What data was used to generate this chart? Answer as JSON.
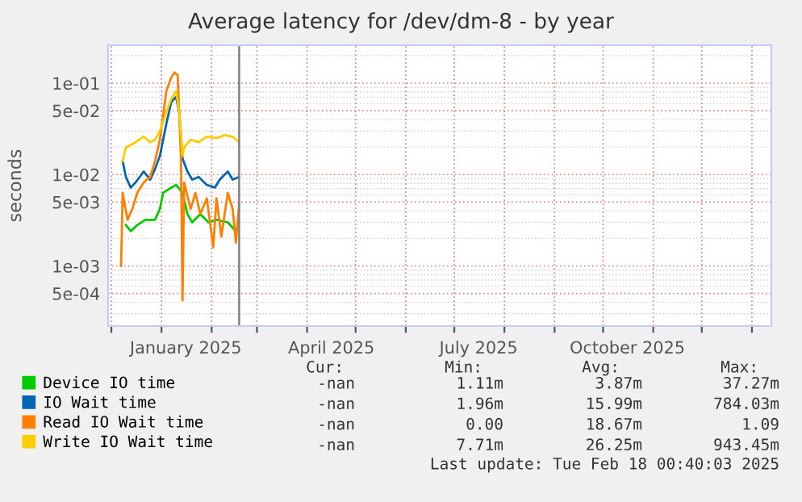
{
  "chart_data": {
    "type": "line",
    "title": "Average latency for /dev/dm-8 - by year",
    "ylabel": "seconds",
    "log": "y",
    "grid": true,
    "legend": "bottom left",
    "marker": "none",
    "line_style": "solid",
    "xlim": [
      "2024-11-29",
      "2026-01-13"
    ],
    "xticks": [
      {
        "value": "2024-12-01",
        "label": null
      },
      {
        "value": "2025-01-01",
        "label": null
      },
      {
        "value": "2025-01-16",
        "label": "January 2025"
      },
      {
        "value": "2025-02-01",
        "label": null
      },
      {
        "value": "2025-03-01",
        "label": null
      },
      {
        "value": "2025-04-01",
        "label": null
      },
      {
        "value": "2025-04-16",
        "label": "April 2025"
      },
      {
        "value": "2025-05-01",
        "label": null
      },
      {
        "value": "2025-06-01",
        "label": null
      },
      {
        "value": "2025-07-01",
        "label": null
      },
      {
        "value": "2025-07-16",
        "label": "July 2025"
      },
      {
        "value": "2025-08-01",
        "label": null
      },
      {
        "value": "2025-09-01",
        "label": null
      },
      {
        "value": "2025-10-01",
        "label": null
      },
      {
        "value": "2025-10-16",
        "label": "October 2025"
      },
      {
        "value": "2025-11-01",
        "label": null
      },
      {
        "value": "2025-12-01",
        "label": null
      },
      {
        "value": "2026-01-01",
        "label": null
      }
    ],
    "ylim": [
      0.00022,
      0.26
    ],
    "yticks": [
      {
        "value": 0.0005,
        "label": "5e-04"
      },
      {
        "value": 0.001,
        "label": "1e-03"
      },
      {
        "value": 0.005,
        "label": "5e-03"
      },
      {
        "value": 0.01,
        "label": "1e-02"
      },
      {
        "value": 0.05,
        "label": "5e-02"
      },
      {
        "value": 0.1,
        "label": "1e-01"
      }
    ],
    "ref_lines": [
      {
        "axis": "x",
        "value": "2025-02-18",
        "color": "#808080"
      }
    ],
    "series": [
      {
        "name": "Device IO time",
        "color": "#00cc00",
        "x": [
          "2024-12-10",
          "2024-12-13",
          "2024-12-17",
          "2024-12-22",
          "2024-12-28",
          "2024-12-31",
          "2025-01-02",
          "2025-01-07",
          "2025-01-10",
          "2025-01-14",
          "2025-01-17",
          "2025-01-20",
          "2025-01-25",
          "2025-01-30",
          "2025-02-04",
          "2025-02-11",
          "2025-02-16",
          "2025-02-18"
        ],
        "values": [
          0.0028,
          0.0024,
          0.0028,
          0.0032,
          0.0032,
          0.0042,
          0.0063,
          0.0072,
          0.0077,
          0.0063,
          0.0037,
          0.003,
          0.0037,
          0.003,
          0.0032,
          0.003,
          0.0024,
          0.003
        ]
      },
      {
        "name": "IO Wait time",
        "color": "#0066b3",
        "x": [
          "2024-12-08",
          "2024-12-10",
          "2024-12-13",
          "2024-12-16",
          "2024-12-21",
          "2024-12-25",
          "2024-12-28",
          "2024-12-31",
          "2025-01-04",
          "2025-01-07",
          "2025-01-10",
          "2025-01-12",
          "2025-01-14",
          "2025-01-17",
          "2025-01-20",
          "2025-01-24",
          "2025-01-29",
          "2025-02-03",
          "2025-02-06",
          "2025-02-11",
          "2025-02-14",
          "2025-02-18"
        ],
        "values": [
          0.014,
          0.0094,
          0.0072,
          0.0082,
          0.0108,
          0.0088,
          0.0115,
          0.016,
          0.036,
          0.062,
          0.071,
          0.048,
          0.015,
          0.0108,
          0.0088,
          0.0094,
          0.0077,
          0.0072,
          0.0088,
          0.0108,
          0.0088,
          0.0094
        ]
      },
      {
        "name": "Read IO Wait time",
        "color": "#ff8000",
        "x": [
          "2024-12-07",
          "2024-12-08",
          "2024-12-11",
          "2024-12-14",
          "2024-12-17",
          "2024-12-21",
          "2024-12-25",
          "2024-12-28",
          "2024-12-31",
          "2025-01-04",
          "2025-01-07",
          "2025-01-09",
          "2025-01-11",
          "2025-01-13",
          "2025-01-14",
          "2025-01-15",
          "2025-01-19",
          "2025-01-22",
          "2025-01-25",
          "2025-01-29",
          "2025-02-02",
          "2025-02-04",
          "2025-02-07",
          "2025-02-11",
          "2025-02-14",
          "2025-02-16",
          "2025-02-18"
        ],
        "values": [
          0.001,
          0.0063,
          0.0032,
          0.0042,
          0.0063,
          0.0082,
          0.0094,
          0.014,
          0.024,
          0.082,
          0.115,
          0.131,
          0.122,
          0.016,
          0.00042,
          0.0082,
          0.0042,
          0.0063,
          0.0037,
          0.0055,
          0.0016,
          0.0055,
          0.0021,
          0.0063,
          0.0042,
          0.0018,
          0.0048
        ]
      },
      {
        "name": "Write IO Wait time",
        "color": "#ffcc00",
        "x": [
          "2024-12-08",
          "2024-12-10",
          "2024-12-16",
          "2024-12-21",
          "2024-12-25",
          "2024-12-28",
          "2024-12-31",
          "2025-01-04",
          "2025-01-07",
          "2025-01-10",
          "2025-01-12",
          "2025-01-14",
          "2025-01-15",
          "2025-01-19",
          "2025-01-24",
          "2025-01-29",
          "2025-02-04",
          "2025-02-09",
          "2025-02-14",
          "2025-02-18"
        ],
        "values": [
          0.014,
          0.0198,
          0.0226,
          0.026,
          0.0226,
          0.024,
          0.03,
          0.048,
          0.067,
          0.082,
          0.048,
          0.016,
          0.0198,
          0.024,
          0.0226,
          0.026,
          0.025,
          0.027,
          0.026,
          0.0226
        ]
      }
    ],
    "annotations": [
      "Cur:",
      "Min:",
      "Avg:",
      "Max:",
      "-nan",
      "1.11m",
      "3.87m",
      "37.27m",
      "-nan",
      "1.96m",
      "15.99m",
      "784.03m",
      "-nan",
      "0.00",
      "18.67m",
      "1.09",
      "-nan",
      "7.71m",
      "26.25m",
      "943.45m",
      "Last update: Tue Feb 18 00:40:03 2025"
    ]
  }
}
